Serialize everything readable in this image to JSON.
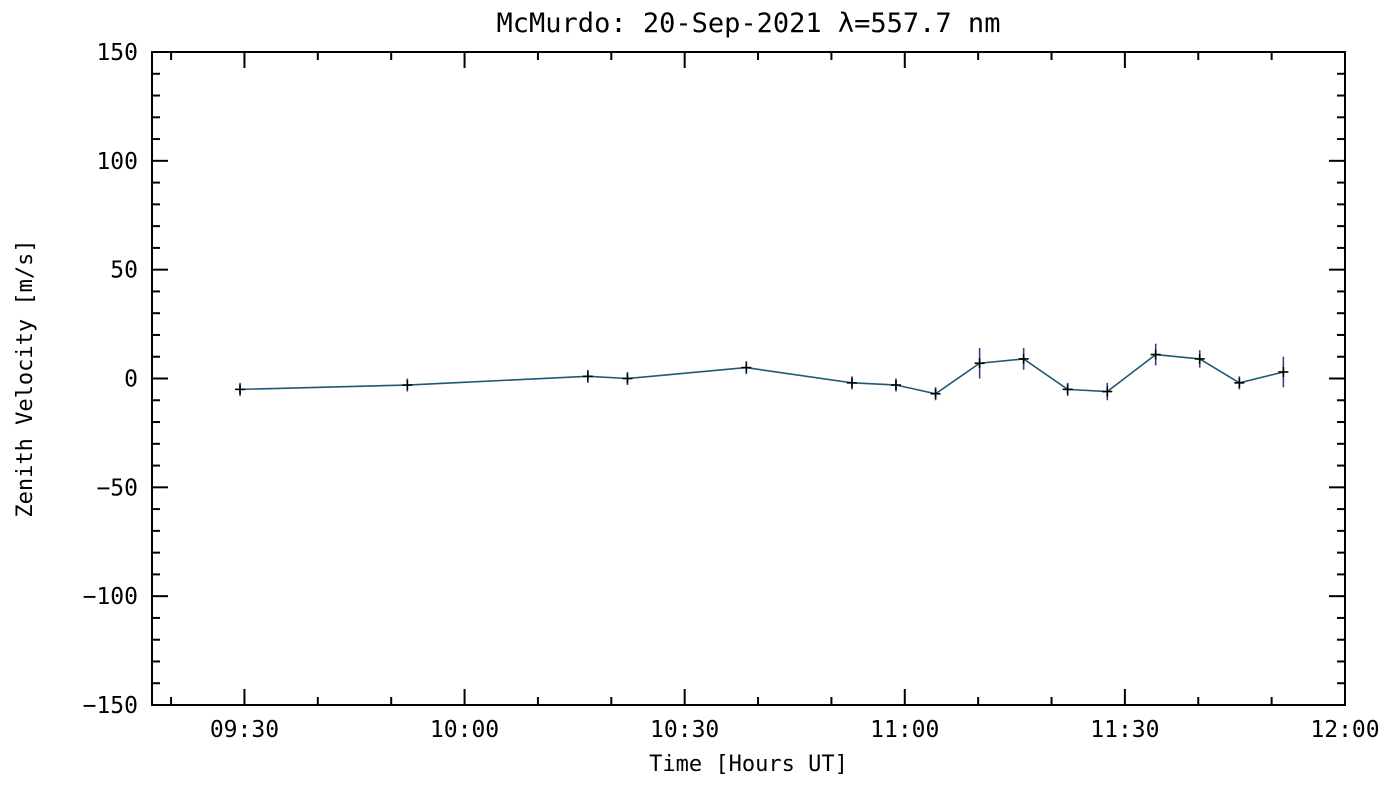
{
  "chart_data": {
    "type": "line",
    "title": "McMurdo: 20-Sep-2021 λ=557.7 nm",
    "xlabel": "Time [Hours UT]",
    "ylabel": "Zenith Velocity [m/s]",
    "legend": "none",
    "grid": false,
    "marker": "plus",
    "error_bars": true,
    "xlim": [
      9.29,
      12.0
    ],
    "ylim": [
      -150,
      150
    ],
    "x_minor_step": 0.1666667,
    "y_minor_step": 10,
    "x_ticks": [
      {
        "value": 9.5,
        "label": "09:30"
      },
      {
        "value": 10.0,
        "label": "10:00"
      },
      {
        "value": 10.5,
        "label": "10:30"
      },
      {
        "value": 11.0,
        "label": "11:00"
      },
      {
        "value": 11.5,
        "label": "11:30"
      },
      {
        "value": 12.0,
        "label": "12:00"
      }
    ],
    "y_ticks": [
      {
        "value": -150,
        "label": "−150"
      },
      {
        "value": -100,
        "label": "−100"
      },
      {
        "value": -50,
        "label": "−50"
      },
      {
        "value": 0,
        "label": "0"
      },
      {
        "value": 50,
        "label": "50"
      },
      {
        "value": 100,
        "label": "100"
      },
      {
        "value": 150,
        "label": "150"
      }
    ],
    "series": [
      {
        "name": "zenith-velocity",
        "x_hours_ut": [
          9.49,
          9.87,
          10.28,
          10.37,
          10.64,
          10.88,
          10.98,
          11.07,
          11.17,
          11.27,
          11.37,
          11.46,
          11.57,
          11.67,
          11.76,
          11.86
        ],
        "y_m_per_s": [
          -5,
          -3,
          1,
          0,
          5,
          -2,
          -3,
          -7,
          7,
          9,
          -5,
          -6,
          11,
          9,
          -2,
          3
        ],
        "y_err_m_per_s": [
          3,
          3,
          3,
          3,
          3,
          3,
          3,
          3,
          7,
          5,
          3,
          4,
          5,
          4,
          3,
          7
        ]
      }
    ],
    "colors": {
      "line": "#1d5a78",
      "marker": "#000000",
      "error": "#33418f",
      "axis": "#000000",
      "text": "#000000",
      "background": "#ffffff"
    }
  }
}
